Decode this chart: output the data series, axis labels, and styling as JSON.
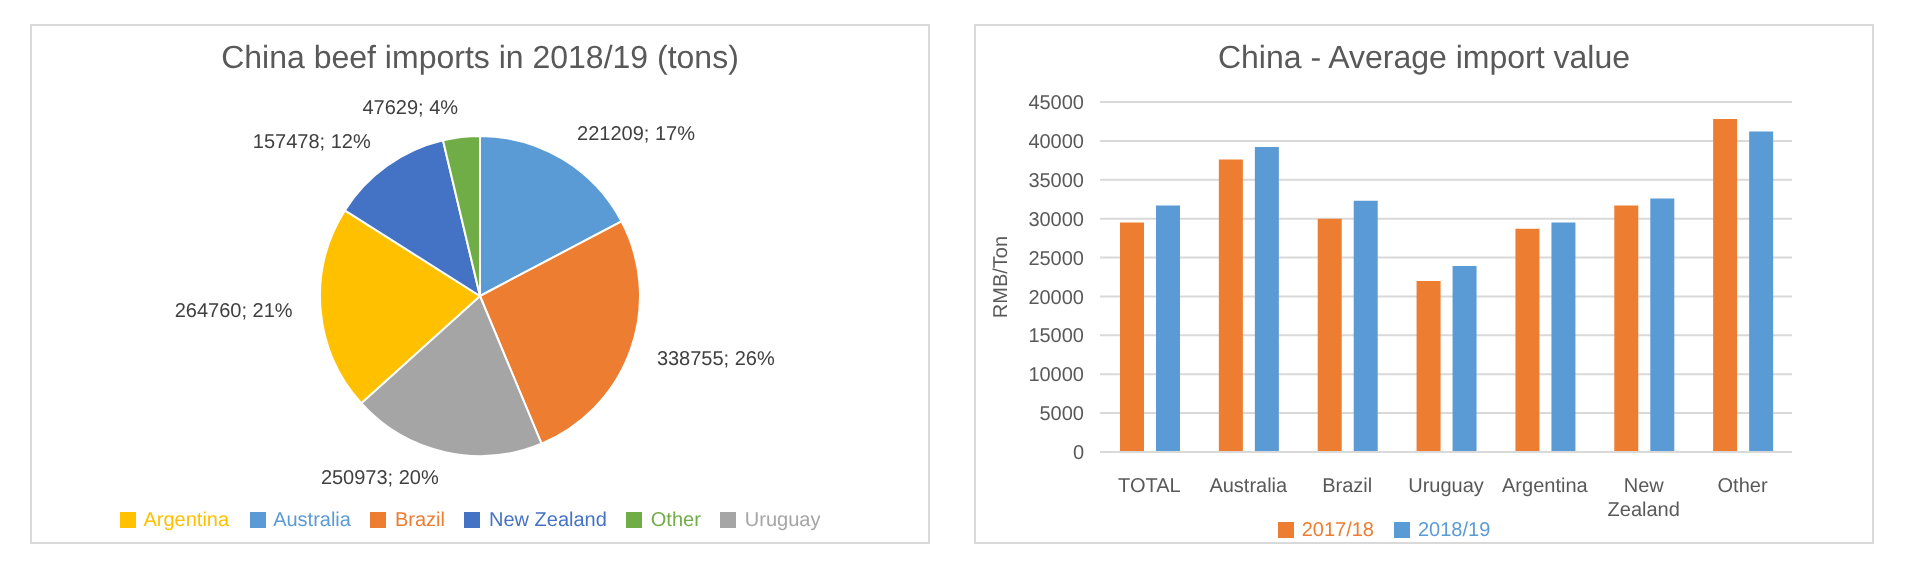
{
  "chart_data": [
    {
      "type": "pie",
      "title": "China beef imports in 2018/19 (tons)",
      "categories": [
        "Australia",
        "Brazil",
        "Uruguay",
        "Argentina",
        "New Zealand",
        "Other"
      ],
      "values": [
        221209,
        338755,
        250973,
        264760,
        157478,
        47629
      ],
      "colors": [
        "#5b9bd5",
        "#ed7d31",
        "#a5a5a5",
        "#ffc000",
        "#4472c4",
        "#70ad47"
      ],
      "value_labels": [
        "221209; 17%",
        "338755; 26%",
        "250973; 20%",
        "264760; 21%",
        "157478; 12%",
        "47629; 4%"
      ],
      "legend": "bottom"
    },
    {
      "type": "bar",
      "title": "China - Average import value",
      "ylabel": "RMB/Ton",
      "categories": [
        "TOTAL",
        "Australia",
        "Brazil",
        "Uruguay",
        "Argentina",
        "New Zealand",
        "Other"
      ],
      "series": [
        {
          "name": "2017/18",
          "color": "#ed7d31",
          "values": [
            29500,
            37600,
            30000,
            22000,
            28700,
            31700,
            42800
          ]
        },
        {
          "name": "2018/19",
          "color": "#5b9bd5",
          "values": [
            31700,
            39200,
            32300,
            23900,
            29500,
            32600,
            41200
          ]
        }
      ],
      "ylim": [
        0,
        45000
      ],
      "yticks": [
        0,
        5000,
        10000,
        15000,
        20000,
        25000,
        30000,
        35000,
        40000,
        45000
      ],
      "grid": "y",
      "legend": "bottom"
    }
  ]
}
